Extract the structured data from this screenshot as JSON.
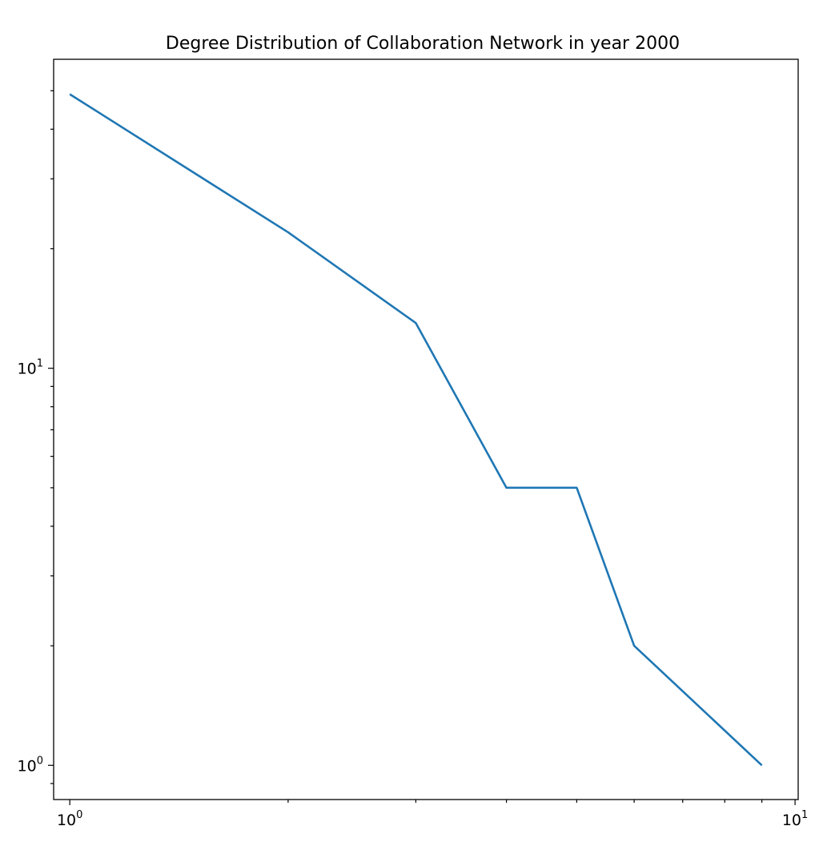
{
  "chart_data": {
    "type": "line",
    "title": "Degree Distribution of Collaboration Network in year 2000",
    "xlabel": "",
    "ylabel": "",
    "xscale": "log",
    "yscale": "log",
    "xlim": [
      0.95,
      10.1
    ],
    "ylim": [
      0.82,
      60.0
    ],
    "grid": false,
    "x_ticks": [
      {
        "value": 1,
        "base": "10",
        "exp": "0"
      },
      {
        "value": 10,
        "base": "10",
        "exp": "1"
      }
    ],
    "y_ticks": [
      {
        "value": 1,
        "base": "10",
        "exp": "0"
      },
      {
        "value": 10,
        "base": "10",
        "exp": "1"
      }
    ],
    "series": [
      {
        "color": "#1f77b4",
        "x": [
          1,
          2,
          3,
          4,
          5,
          6,
          9
        ],
        "y": [
          49,
          22,
          13,
          5,
          5,
          2,
          1
        ]
      }
    ]
  }
}
